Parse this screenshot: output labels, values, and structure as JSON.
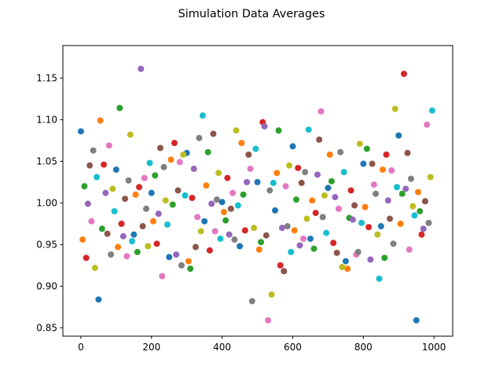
{
  "chart_data": {
    "type": "scatter",
    "title": "Simulation Data Averages",
    "xlim": [
      -51,
      1053
    ],
    "ylim": [
      0.84,
      1.189
    ],
    "xticks": [
      0,
      200,
      400,
      600,
      800,
      1000
    ],
    "yticks": [
      0.85,
      {
        "value": 0.9,
        "label": "0.90"
      },
      0.95,
      {
        "value": 1.0,
        "label": "1.00"
      },
      1.05,
      {
        "value": 1.1,
        "label": "1.10"
      },
      1.15
    ],
    "series": [
      {
        "color": "#1f77b4",
        "x": [
          0,
          50,
          100,
          150,
          200,
          250,
          300,
          350,
          400,
          450,
          500,
          550,
          600,
          650,
          700,
          750,
          800,
          850,
          900,
          950
        ],
        "values": [
          1.086,
          0.884,
          1.04,
          0.962,
          1.012,
          0.935,
          1.06,
          0.978,
          1.001,
          0.948,
          1.025,
          0.991,
          1.068,
          0.957,
          1.018,
          0.93,
          1.047,
          0.972,
          1.081,
          0.859
        ]
      },
      {
        "color": "#ff7f0e",
        "x": [
          5,
          55,
          105,
          155,
          205,
          255,
          305,
          355,
          405,
          455,
          505,
          555,
          605,
          655,
          705,
          755,
          805,
          855,
          905,
          955
        ],
        "values": [
          0.956,
          1.099,
          0.947,
          1.01,
          0.978,
          1.052,
          0.93,
          1.021,
          0.989,
          1.072,
          0.944,
          1.036,
          0.967,
          1.003,
          1.058,
          0.921,
          0.995,
          1.04,
          0.975,
          1.013
        ]
      },
      {
        "color": "#2ca02c",
        "x": [
          10,
          60,
          110,
          160,
          210,
          260,
          310,
          360,
          410,
          460,
          510,
          560,
          610,
          660,
          710,
          760,
          810,
          860,
          910,
          960
        ],
        "values": [
          1.02,
          0.969,
          1.114,
          0.941,
          1.033,
          0.998,
          0.921,
          1.061,
          0.979,
          1.01,
          0.953,
          1.087,
          1.004,
          0.945,
          1.026,
          0.982,
          1.065,
          0.934,
          1.011,
          0.99
        ]
      },
      {
        "color": "#d62728",
        "x": [
          15,
          65,
          115,
          165,
          215,
          265,
          315,
          365,
          415,
          465,
          515,
          565,
          615,
          665,
          715,
          765,
          815,
          865,
          915,
          965
        ],
        "values": [
          0.934,
          1.046,
          0.975,
          1.019,
          0.951,
          1.072,
          1.006,
          0.943,
          1.03,
          0.967,
          1.097,
          0.925,
          1.042,
          0.988,
          0.952,
          1.015,
          0.971,
          1.058,
          1.155,
          0.962
        ]
      },
      {
        "color": "#9467bd",
        "x": [
          20,
          70,
          120,
          170,
          220,
          270,
          320,
          370,
          420,
          470,
          520,
          570,
          620,
          670,
          720,
          770,
          820,
          870,
          920,
          970
        ],
        "values": [
          0.999,
          1.012,
          0.96,
          1.161,
          0.987,
          0.938,
          1.041,
          0.999,
          0.962,
          1.025,
          1.092,
          0.97,
          0.949,
          1.034,
          1.007,
          0.98,
          0.932,
          1.003,
          1.017,
          0.969
        ]
      },
      {
        "color": "#8c564b",
        "x": [
          25,
          75,
          125,
          175,
          225,
          275,
          325,
          375,
          425,
          475,
          525,
          575,
          625,
          675,
          725,
          775,
          825,
          875,
          925,
          975
        ],
        "values": [
          1.045,
          0.963,
          1.005,
          0.972,
          1.066,
          1.015,
          0.947,
          1.083,
          0.993,
          1.058,
          0.961,
          0.918,
          1.024,
          1.076,
          0.94,
          0.997,
          1.047,
          0.981,
          1.06,
          1.002
        ]
      },
      {
        "color": "#e377c2",
        "x": [
          30,
          80,
          130,
          180,
          230,
          280,
          330,
          380,
          430,
          480,
          530,
          580,
          630,
          680,
          730,
          780,
          830,
          880,
          930,
          980
        ],
        "values": [
          0.978,
          1.069,
          0.936,
          1.03,
          0.912,
          1.049,
          0.983,
          0.966,
          1.012,
          1.041,
          0.859,
          1.02,
          0.957,
          1.11,
          0.993,
          0.938,
          1.022,
          1.039,
          0.944,
          1.094
        ]
      },
      {
        "color": "#7f7f7f",
        "x": [
          35,
          85,
          135,
          185,
          235,
          285,
          335,
          385,
          435,
          485,
          535,
          585,
          635,
          685,
          735,
          785,
          835,
          885,
          935,
          985
        ],
        "values": [
          1.063,
          0.938,
          1.027,
          0.993,
          1.043,
          0.925,
          1.078,
          1.004,
          0.956,
          0.882,
          1.015,
          0.972,
          1.037,
          0.983,
          1.061,
          0.941,
          1.011,
          0.951,
          1.029,
          0.976
        ]
      },
      {
        "color": "#bcbd22",
        "x": [
          40,
          90,
          140,
          190,
          240,
          290,
          340,
          390,
          440,
          490,
          540,
          590,
          640,
          690,
          740,
          790,
          840,
          890,
          940,
          990
        ],
        "values": [
          0.922,
          1.017,
          1.082,
          0.948,
          1.003,
          1.058,
          0.966,
          1.036,
          1.087,
          0.97,
          0.89,
          1.045,
          0.981,
          1.009,
          0.923,
          1.071,
          0.962,
          1.113,
          0.996,
          1.031
        ]
      },
      {
        "color": "#17becf",
        "x": [
          45,
          95,
          145,
          195,
          245,
          295,
          345,
          395,
          445,
          495,
          545,
          595,
          645,
          695,
          745,
          795,
          845,
          895,
          945,
          995
        ],
        "values": [
          1.031,
          0.99,
          0.954,
          1.048,
          0.974,
          1.009,
          1.105,
          0.957,
          0.997,
          1.065,
          1.024,
          0.941,
          1.088,
          0.964,
          1.037,
          0.976,
          0.909,
          1.019,
          0.985,
          1.111
        ]
      }
    ]
  }
}
